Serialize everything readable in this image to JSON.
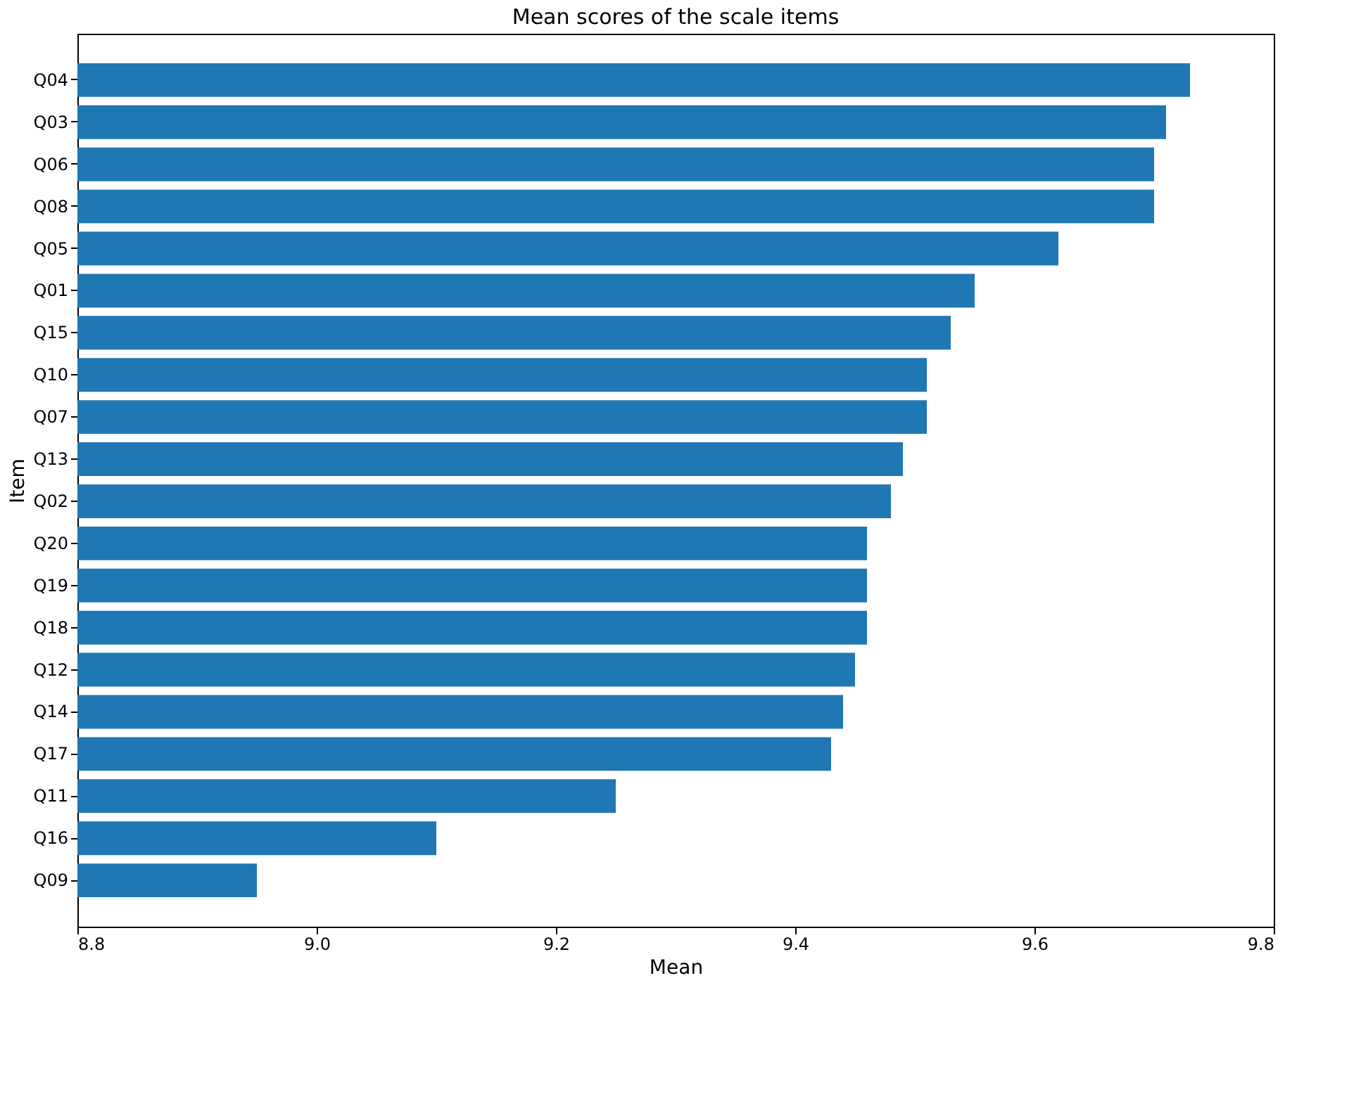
{
  "chart_data": {
    "type": "bar",
    "orientation": "horizontal",
    "title": "Mean scores of the scale items",
    "xlabel": "Mean",
    "ylabel": "Item",
    "categories": [
      "Q04",
      "Q03",
      "Q06",
      "Q08",
      "Q05",
      "Q01",
      "Q15",
      "Q10",
      "Q07",
      "Q13",
      "Q02",
      "Q20",
      "Q19",
      "Q18",
      "Q12",
      "Q14",
      "Q17",
      "Q11",
      "Q16",
      "Q09"
    ],
    "values": [
      9.73,
      9.71,
      9.7,
      9.7,
      9.62,
      9.55,
      9.53,
      9.51,
      9.51,
      9.49,
      9.48,
      9.46,
      9.46,
      9.46,
      9.45,
      9.44,
      9.43,
      9.25,
      9.1,
      8.95
    ],
    "color": "#1f77b4",
    "xlim": [
      8.8,
      9.8
    ],
    "xticks": [
      8.8,
      {
        "value": 9,
        "label": "9.0"
      },
      9.2,
      9.4,
      9.6,
      9.8
    ],
    "grid": false
  }
}
